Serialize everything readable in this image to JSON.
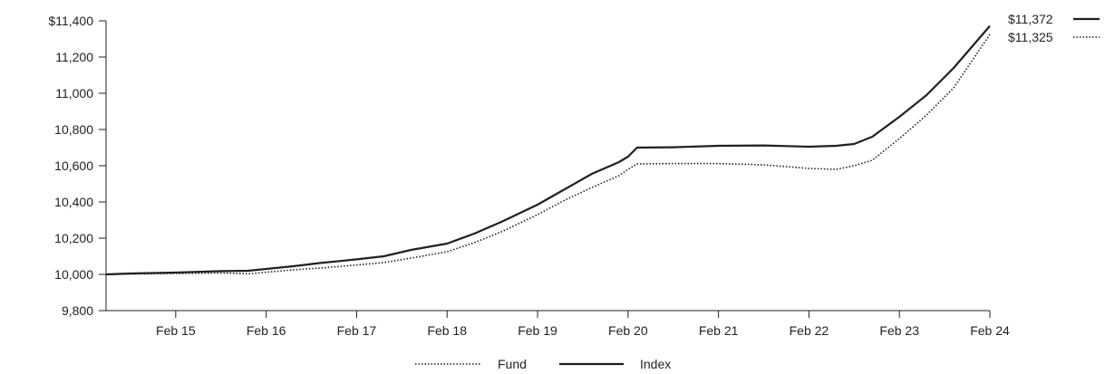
{
  "chart_data": {
    "type": "line",
    "title": "",
    "xlabel": "",
    "ylabel": "",
    "ylim": [
      9800,
      11400
    ],
    "y_ticks": [
      {
        "value": 11400,
        "label": "$11,400"
      },
      {
        "value": 11200,
        "label": "11,200"
      },
      {
        "value": 11000,
        "label": "11,000"
      },
      {
        "value": 10800,
        "label": "10,800"
      },
      {
        "value": 10600,
        "label": "10,600"
      },
      {
        "value": 10400,
        "label": "10,400"
      },
      {
        "value": 10200,
        "label": "10,200"
      },
      {
        "value": 10000,
        "label": "10,000"
      },
      {
        "value": 9800,
        "label": "9,800"
      }
    ],
    "x_range": [
      2014.23,
      2024.0
    ],
    "x_ticks": [
      {
        "value": 2015,
        "label": "Feb 15"
      },
      {
        "value": 2016,
        "label": "Feb 16"
      },
      {
        "value": 2017,
        "label": "Feb 17"
      },
      {
        "value": 2018,
        "label": "Feb 18"
      },
      {
        "value": 2019,
        "label": "Feb 19"
      },
      {
        "value": 2020,
        "label": "Feb 20"
      },
      {
        "value": 2021,
        "label": "Feb 21"
      },
      {
        "value": 2022,
        "label": "Feb 22"
      },
      {
        "value": 2023,
        "label": "Feb 23"
      },
      {
        "value": 2024,
        "label": "Feb 24"
      }
    ],
    "grid": false,
    "legend_position": "bottom-center",
    "series": [
      {
        "name": "Fund",
        "style": "dotted",
        "color": "#231f20",
        "end_label": "$11,325",
        "points": [
          [
            2014.23,
            10000
          ],
          [
            2014.5,
            10002
          ],
          [
            2015.0,
            10005
          ],
          [
            2015.5,
            10008
          ],
          [
            2015.8,
            10003
          ],
          [
            2016.0,
            10012
          ],
          [
            2016.3,
            10025
          ],
          [
            2016.6,
            10035
          ],
          [
            2017.0,
            10052
          ],
          [
            2017.3,
            10065
          ],
          [
            2017.6,
            10090
          ],
          [
            2018.0,
            10125
          ],
          [
            2018.3,
            10175
          ],
          [
            2018.6,
            10235
          ],
          [
            2019.0,
            10330
          ],
          [
            2019.3,
            10410
          ],
          [
            2019.6,
            10480
          ],
          [
            2019.9,
            10545
          ],
          [
            2020.0,
            10580
          ],
          [
            2020.1,
            10610
          ],
          [
            2020.5,
            10612
          ],
          [
            2021.0,
            10612
          ],
          [
            2021.5,
            10605
          ],
          [
            2022.0,
            10585
          ],
          [
            2022.3,
            10580
          ],
          [
            2022.5,
            10600
          ],
          [
            2022.7,
            10630
          ],
          [
            2023.0,
            10750
          ],
          [
            2023.3,
            10880
          ],
          [
            2023.6,
            11030
          ],
          [
            2024.0,
            11325
          ]
        ]
      },
      {
        "name": "Index",
        "style": "solid",
        "color": "#231f20",
        "end_label": "$11,372",
        "points": [
          [
            2014.23,
            10000
          ],
          [
            2014.5,
            10005
          ],
          [
            2015.0,
            10010
          ],
          [
            2015.5,
            10018
          ],
          [
            2015.8,
            10020
          ],
          [
            2016.0,
            10030
          ],
          [
            2016.3,
            10045
          ],
          [
            2016.6,
            10063
          ],
          [
            2017.0,
            10083
          ],
          [
            2017.3,
            10100
          ],
          [
            2017.6,
            10135
          ],
          [
            2018.0,
            10170
          ],
          [
            2018.3,
            10225
          ],
          [
            2018.6,
            10290
          ],
          [
            2019.0,
            10385
          ],
          [
            2019.3,
            10470
          ],
          [
            2019.6,
            10555
          ],
          [
            2019.9,
            10620
          ],
          [
            2020.0,
            10650
          ],
          [
            2020.1,
            10700
          ],
          [
            2020.5,
            10702
          ],
          [
            2021.0,
            10710
          ],
          [
            2021.5,
            10712
          ],
          [
            2022.0,
            10705
          ],
          [
            2022.3,
            10710
          ],
          [
            2022.5,
            10720
          ],
          [
            2022.7,
            10760
          ],
          [
            2023.0,
            10870
          ],
          [
            2023.3,
            10990
          ],
          [
            2023.6,
            11140
          ],
          [
            2024.0,
            11372
          ]
        ]
      }
    ]
  }
}
